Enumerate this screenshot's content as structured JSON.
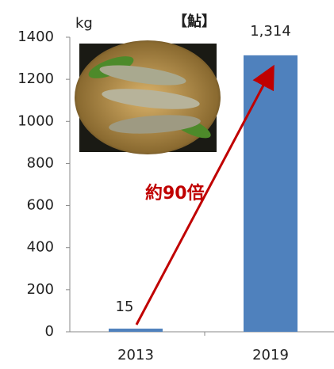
{
  "chart_data": {
    "type": "bar",
    "title": "【鮎】",
    "y_label": "kg",
    "annotation": "約90倍",
    "categories": [
      "2013",
      "2019"
    ],
    "values": [
      15,
      1314
    ],
    "value_labels": [
      "15",
      "1,314"
    ],
    "color": "#4f81bd",
    "ylim": [
      0,
      1400
    ],
    "yticks": [
      0,
      200,
      400,
      600,
      800,
      1000,
      1200,
      1400
    ]
  }
}
